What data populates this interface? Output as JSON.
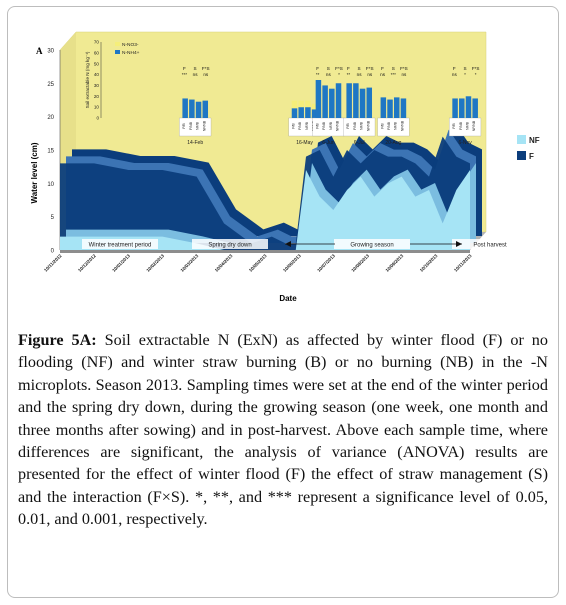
{
  "panel_label": "A",
  "caption": {
    "label": "Figure 5A:",
    "text": "Soil extractable N (ExN) as affected by winter flood (F) or no flooding (NF) and winter straw burning (B) or no burning (NB) in the -N microplots. Season 2013. Sampling times were set at the end of the winter period and the spring dry down, during the growing season (one week, one month and three months after sowing) and in post-harvest. Above each sample time, where differences are significant, the analysis of variance (ANOVA) results are presented for the effect of winter flood (F) the effect of straw management (S) and the interaction (F×S). *, **, and *** represent a significance level of 0.05, 0.01, and 0.001, respectively."
  },
  "colors": {
    "nf": "#a6e4f5",
    "f": "#0b3d7c",
    "nf_side": "#7bbde0",
    "f_side": "#3c74b4",
    "wall": "#f0ea93",
    "floor": "#b3b3b3",
    "no3": "#f5ee7a",
    "nh4": "#1f77c4",
    "panel": "#ffffff"
  },
  "chart_data": [
    {
      "type": "area",
      "ylabel": "Water level (cm)",
      "xlabel": "Date",
      "ylim": [
        0,
        30
      ],
      "yticks": [
        0,
        5,
        10,
        15,
        20,
        25,
        30
      ],
      "x_ticks": [
        "10/11/2012",
        "10/12/2012",
        "10/01/2013",
        "10/02/2013",
        "10/03/2013",
        "10/04/2013",
        "10/05/2013",
        "10/06/2013",
        "10/07/2013",
        "10/08/2013",
        "10/09/2013",
        "10/10/2013",
        "10/11/2013"
      ],
      "legend": [
        "NF",
        "F"
      ],
      "legend_position": "right",
      "series": [
        {
          "name": "F",
          "x": [
            0,
            1,
            2,
            3,
            4,
            4.8,
            5.6,
            6.2,
            6.6,
            6.9,
            7.2,
            7.6,
            8.0,
            8.4,
            8.8,
            9.2,
            9.6,
            10.0,
            10.4,
            10.8,
            11.2,
            11.6,
            12.0
          ],
          "values": [
            13,
            13,
            12,
            12,
            11,
            4,
            1,
            2,
            1,
            1,
            14,
            15,
            11,
            15,
            13,
            15,
            14,
            14,
            13,
            11,
            17,
            14,
            13
          ]
        },
        {
          "name": "NF",
          "x": [
            0,
            1,
            2,
            3,
            4,
            4.8,
            5.6,
            6.2,
            6.6,
            6.9,
            7.2,
            7.6,
            8.0,
            8.4,
            8.8,
            9.2,
            9.6,
            10.0,
            10.4,
            10.8,
            11.2,
            11.6,
            12.0
          ],
          "values": [
            2,
            2,
            2,
            2,
            1,
            0,
            0,
            0,
            0,
            0,
            12,
            8,
            6,
            9,
            11,
            8,
            10,
            11,
            8,
            9,
            4,
            9,
            12
          ]
        }
      ],
      "periods": [
        "Winter treatment period",
        "Spring dry down",
        "Growing season",
        "Post harvest"
      ]
    },
    {
      "type": "bar",
      "ylabel": "Soil extractable N (mg kg⁻¹)",
      "ylim": [
        0,
        70
      ],
      "yticks": [
        0,
        10,
        20,
        30,
        40,
        50,
        60,
        70
      ],
      "legend": [
        "N-NO3-",
        "N-NH4+"
      ],
      "legend_position": "top-left",
      "treatments": [
        "F/B",
        "F/NB",
        "NF/B",
        "NF/NB"
      ],
      "groups": [
        {
          "date": "14-Feb",
          "x": 3.7,
          "anova": {
            "F": "***",
            "S": "ns",
            "FxS": "ns"
          },
          "nh4": [
            18,
            17,
            15,
            16
          ],
          "no3": [
            0,
            0,
            0,
            0
          ]
        },
        {
          "date": "16-May",
          "x": 6.9,
          "anova": {
            "F": "",
            "S": "",
            "FxS": ""
          },
          "nh4": [
            9,
            10,
            10,
            8
          ],
          "no3": [
            7,
            6,
            6,
            5
          ]
        },
        {
          "date": "6-Jun",
          "x": 7.6,
          "anova": {
            "F": "**",
            "S": "ns",
            "FxS": "*"
          },
          "nh4": [
            35,
            30,
            27,
            32
          ],
          "no3": [
            0,
            0,
            0,
            0
          ]
        },
        {
          "date": "6-Jul",
          "x": 8.5,
          "anova": {
            "F": "**",
            "S": "ns",
            "FxS": "ns"
          },
          "nh4": [
            32,
            32,
            27,
            28
          ],
          "no3": [
            0,
            0,
            0,
            0
          ]
        },
        {
          "date": "20-Aug",
          "x": 9.5,
          "anova": {
            "F": "ns",
            "S": "***",
            "FxS": "ns"
          },
          "nh4": [
            19,
            17,
            19,
            18
          ],
          "no3": [
            0,
            0,
            0,
            0
          ]
        },
        {
          "date": "6-Nov",
          "x": 11.6,
          "anova": {
            "F": "ns",
            "S": "*",
            "FxS": "*"
          },
          "nh4": [
            18,
            18,
            20,
            18
          ],
          "no3": [
            0,
            0,
            0,
            0
          ]
        }
      ]
    }
  ]
}
